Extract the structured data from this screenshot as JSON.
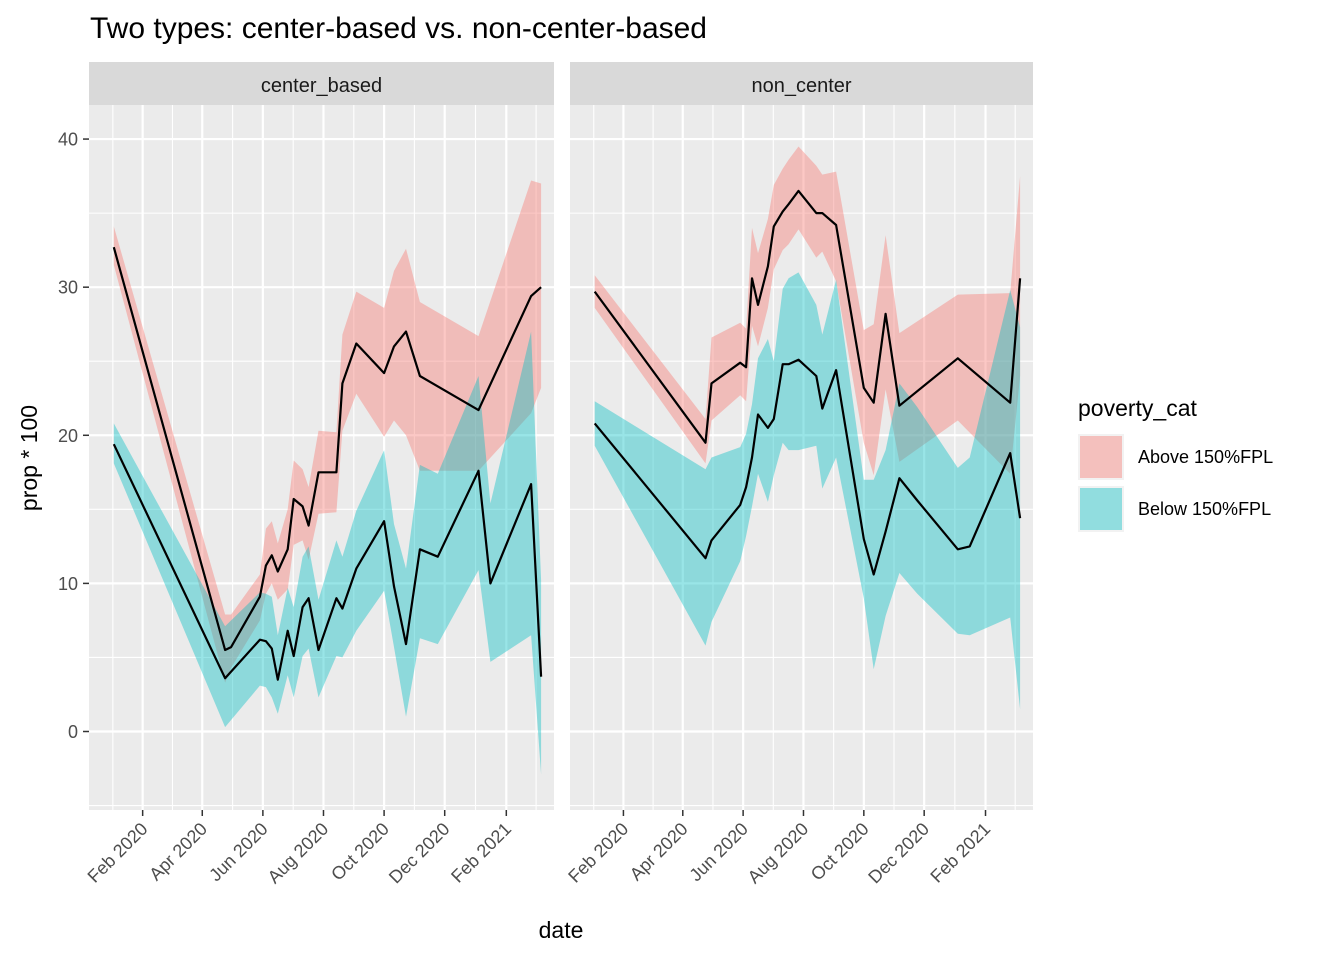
{
  "chart_data": {
    "type": "area",
    "title": "Two types: center-based vs. non-center-based",
    "xlabel": "date",
    "ylabel": "prop * 100",
    "ylim": [
      -5.3,
      42.3
    ],
    "xlim": [
      "2019-12-09",
      "2021-03-21"
    ],
    "yticks": [
      0,
      10,
      20,
      30,
      40
    ],
    "xticks": [
      {
        "date": "2020-02-01",
        "label": "Feb 2020"
      },
      {
        "date": "2020-04-01",
        "label": "Apr 2020"
      },
      {
        "date": "2020-06-01",
        "label": "Jun 2020"
      },
      {
        "date": "2020-08-01",
        "label": "Aug 2020"
      },
      {
        "date": "2020-10-01",
        "label": "Oct 2020"
      },
      {
        "date": "2020-12-01",
        "label": "Dec 2020"
      },
      {
        "date": "2021-02-01",
        "label": "Feb 2021"
      }
    ],
    "grid": true,
    "legend": {
      "title": "poverty_cat",
      "position": "right",
      "entries": [
        {
          "name": "Above 150%FPL",
          "color": "#F8766D"
        },
        {
          "name": "Below 150%FPL",
          "color": "#00BFC4"
        }
      ]
    },
    "panels": [
      {
        "label": "center_based",
        "series": [
          {
            "name": "Above 150%FPL",
            "color": "#F8766D",
            "x": [
              "2020-01-03",
              "2020-04-24",
              "2020-04-30",
              "2020-05-29",
              "2020-06-04",
              "2020-06-10",
              "2020-06-16",
              "2020-06-26",
              "2020-07-02",
              "2020-07-11",
              "2020-07-17",
              "2020-07-27",
              "2020-08-14",
              "2020-08-20",
              "2020-09-03",
              "2020-10-01",
              "2020-10-11",
              "2020-10-23",
              "2020-11-06",
              "2021-01-04",
              "2021-02-26",
              "2021-03-08"
            ],
            "y": [
              32.7,
              5.5,
              5.7,
              9.1,
              11.2,
              11.9,
              10.8,
              12.3,
              15.7,
              15.2,
              13.9,
              17.5,
              17.5,
              23.5,
              26.2,
              24.2,
              26.0,
              27.0,
              24.0,
              21.7,
              29.4,
              30.0
            ],
            "lower": [
              31.5,
              3.3,
              4.3,
              7.5,
              9.3,
              10.0,
              8.9,
              9.6,
              12.6,
              12.9,
              11.6,
              14.7,
              14.8,
              20.3,
              22.8,
              19.9,
              21.0,
              20.0,
              17.6,
              17.6,
              21.5,
              23.2
            ],
            "upper": [
              34.1,
              7.9,
              7.9,
              10.6,
              13.7,
              14.2,
              12.7,
              15.0,
              18.3,
              17.7,
              16.5,
              20.3,
              20.2,
              26.8,
              29.7,
              28.6,
              31.1,
              32.6,
              29.0,
              26.7,
              37.2,
              37.0
            ]
          },
          {
            "name": "Below 150%FPL",
            "color": "#00BFC4",
            "x": [
              "2020-01-03",
              "2020-04-24",
              "2020-05-29",
              "2020-06-04",
              "2020-06-10",
              "2020-06-16",
              "2020-06-26",
              "2020-07-02",
              "2020-07-11",
              "2020-07-17",
              "2020-07-27",
              "2020-08-14",
              "2020-08-20",
              "2020-09-03",
              "2020-10-01",
              "2020-10-11",
              "2020-10-23",
              "2020-11-06",
              "2020-11-24",
              "2021-01-04",
              "2021-01-16",
              "2021-02-26",
              "2021-03-08"
            ],
            "y": [
              19.4,
              3.6,
              6.2,
              6.1,
              5.6,
              3.5,
              6.8,
              5.1,
              8.4,
              9.0,
              5.5,
              9.0,
              8.3,
              11.0,
              14.2,
              9.8,
              5.9,
              12.3,
              11.8,
              17.6,
              10.0,
              16.7,
              3.7
            ],
            "lower": [
              18.1,
              0.3,
              3.1,
              3.0,
              2.3,
              1.2,
              3.8,
              2.3,
              5.1,
              5.6,
              2.3,
              5.1,
              5.0,
              6.8,
              9.5,
              5.7,
              1.0,
              6.3,
              5.9,
              10.9,
              4.7,
              6.5,
              -2.9
            ],
            "upper": [
              20.8,
              7.1,
              9.4,
              9.3,
              9.1,
              6.5,
              9.7,
              8.4,
              11.8,
              12.5,
              8.9,
              12.9,
              11.8,
              14.9,
              19.0,
              14.0,
              11.0,
              18.0,
              17.4,
              24.0,
              15.4,
              27.0,
              10.2
            ]
          }
        ]
      },
      {
        "label": "non_center",
        "series": [
          {
            "name": "Above 150%FPL",
            "color": "#F8766D",
            "x": [
              "2020-01-03",
              "2020-04-24",
              "2020-04-30",
              "2020-05-29",
              "2020-06-04",
              "2020-06-10",
              "2020-06-16",
              "2020-06-26",
              "2020-07-02",
              "2020-07-11",
              "2020-07-17",
              "2020-07-27",
              "2020-08-14",
              "2020-08-20",
              "2020-09-03",
              "2020-10-01",
              "2020-10-11",
              "2020-10-23",
              "2020-11-06",
              "2021-01-04",
              "2021-02-26",
              "2021-03-08"
            ],
            "y": [
              29.7,
              19.5,
              23.5,
              24.9,
              24.6,
              30.6,
              28.8,
              31.4,
              34.1,
              35.1,
              35.6,
              36.5,
              35.0,
              35.0,
              34.2,
              23.2,
              22.2,
              28.2,
              22.0,
              25.2,
              22.2,
              30.6
            ],
            "lower": [
              28.6,
              18.1,
              21.0,
              22.7,
              22.3,
              27.4,
              26.0,
              28.6,
              31.2,
              32.5,
              32.9,
              33.9,
              32.0,
              32.4,
              30.4,
              19.5,
              17.3,
              23.1,
              18.2,
              21.0,
              17.4,
              24.0
            ],
            "upper": [
              30.8,
              21.1,
              26.6,
              27.6,
              27.2,
              34.0,
              32.3,
              34.6,
              36.9,
              38.0,
              38.6,
              39.5,
              38.2,
              37.6,
              37.8,
              27.1,
              27.5,
              33.5,
              26.9,
              29.5,
              29.6,
              37.5
            ]
          },
          {
            "name": "Below 150%FPL",
            "color": "#00BFC4",
            "x": [
              "2020-01-03",
              "2020-04-24",
              "2020-04-30",
              "2020-05-29",
              "2020-06-04",
              "2020-06-10",
              "2020-06-16",
              "2020-06-26",
              "2020-07-02",
              "2020-07-11",
              "2020-07-17",
              "2020-07-27",
              "2020-08-14",
              "2020-08-20",
              "2020-09-03",
              "2020-10-01",
              "2020-10-11",
              "2020-10-23",
              "2020-11-06",
              "2020-11-24",
              "2021-01-04",
              "2021-01-16",
              "2021-02-26",
              "2021-03-08"
            ],
            "y": [
              20.8,
              11.7,
              12.9,
              15.3,
              16.5,
              18.5,
              21.4,
              20.5,
              21.1,
              24.8,
              24.8,
              25.1,
              24.0,
              21.8,
              24.4,
              13.0,
              10.6,
              13.5,
              17.1,
              15.6,
              12.3,
              12.5,
              18.8,
              14.4
            ],
            "lower": [
              19.3,
              5.8,
              7.4,
              11.5,
              13.2,
              15.2,
              17.4,
              15.5,
              17.3,
              19.5,
              19.0,
              19.0,
              19.3,
              16.4,
              18.5,
              9.0,
              4.2,
              7.8,
              10.7,
              9.3,
              6.6,
              6.5,
              7.7,
              1.5
            ],
            "upper": [
              22.3,
              17.7,
              18.5,
              19.2,
              20.1,
              22.1,
              25.2,
              26.5,
              25.0,
              29.9,
              30.6,
              31.0,
              28.8,
              26.8,
              30.5,
              17.0,
              17.0,
              19.0,
              23.5,
              21.9,
              17.8,
              18.5,
              29.8,
              27.3
            ]
          }
        ]
      }
    ]
  }
}
